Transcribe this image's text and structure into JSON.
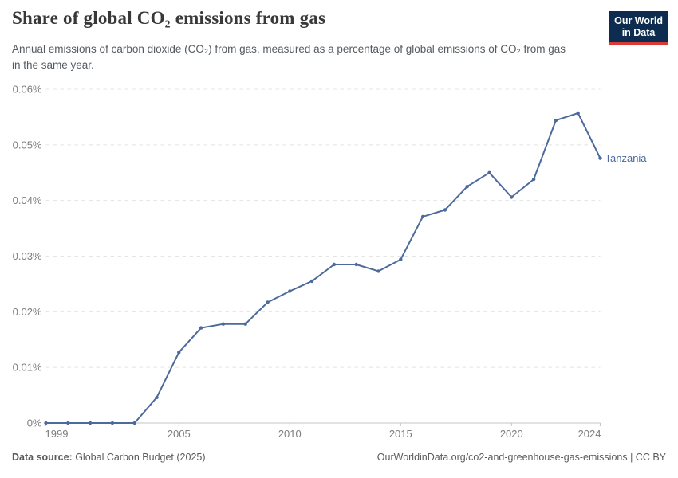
{
  "header": {
    "title": "Share of global CO₂ emissions from gas",
    "subtitle": "Annual emissions of carbon dioxide (CO₂) from gas, measured as a percentage of global emissions of CO₂ from gas in the same year.",
    "logo": {
      "line1": "Our World",
      "line2": "in Data"
    }
  },
  "chart_data": {
    "type": "line",
    "title": "Share of global CO₂ emissions from gas",
    "xlabel": "",
    "ylabel": "",
    "x": [
      1999,
      2000,
      2001,
      2002,
      2003,
      2004,
      2005,
      2006,
      2007,
      2008,
      2009,
      2010,
      2011,
      2012,
      2013,
      2014,
      2015,
      2016,
      2017,
      2018,
      2019,
      2020,
      2021,
      2022,
      2023,
      2024
    ],
    "series": [
      {
        "name": "Tanzania",
        "color": "#4c6a9c",
        "values": [
          0,
          0,
          0,
          0,
          0,
          0.0046,
          0.0127,
          0.0171,
          0.0178,
          0.0178,
          0.0217,
          0.0237,
          0.0255,
          0.0285,
          0.0285,
          0.0273,
          0.0294,
          0.0371,
          0.0383,
          0.0425,
          0.045,
          0.0406,
          0.0438,
          0.0544,
          0.0557,
          0.0476
        ]
      }
    ],
    "ylim": [
      0,
      0.06
    ],
    "yticks": [
      {
        "value": 0,
        "label": "0%"
      },
      {
        "value": 0.01,
        "label": "0.01%"
      },
      {
        "value": 0.02,
        "label": "0.02%"
      },
      {
        "value": 0.03,
        "label": "0.03%"
      },
      {
        "value": 0.04,
        "label": "0.04%"
      },
      {
        "value": 0.05,
        "label": "0.05%"
      },
      {
        "value": 0.06,
        "label": "0.06%"
      }
    ],
    "xticks": [
      1999,
      2005,
      2010,
      2015,
      2020,
      2024
    ],
    "unit": "%",
    "grid": "horizontal-dashed",
    "legend_position": "end-of-line",
    "colors": {
      "grid": "#e4e4e4",
      "axis": "#c6c6c6",
      "tick_label": "#7d7d7d"
    }
  },
  "footer": {
    "source_label": "Data source:",
    "source_text": " Global Carbon Budget (2025)",
    "credit": "OurWorldinData.org/co2-and-greenhouse-gas-emissions | CC BY"
  }
}
